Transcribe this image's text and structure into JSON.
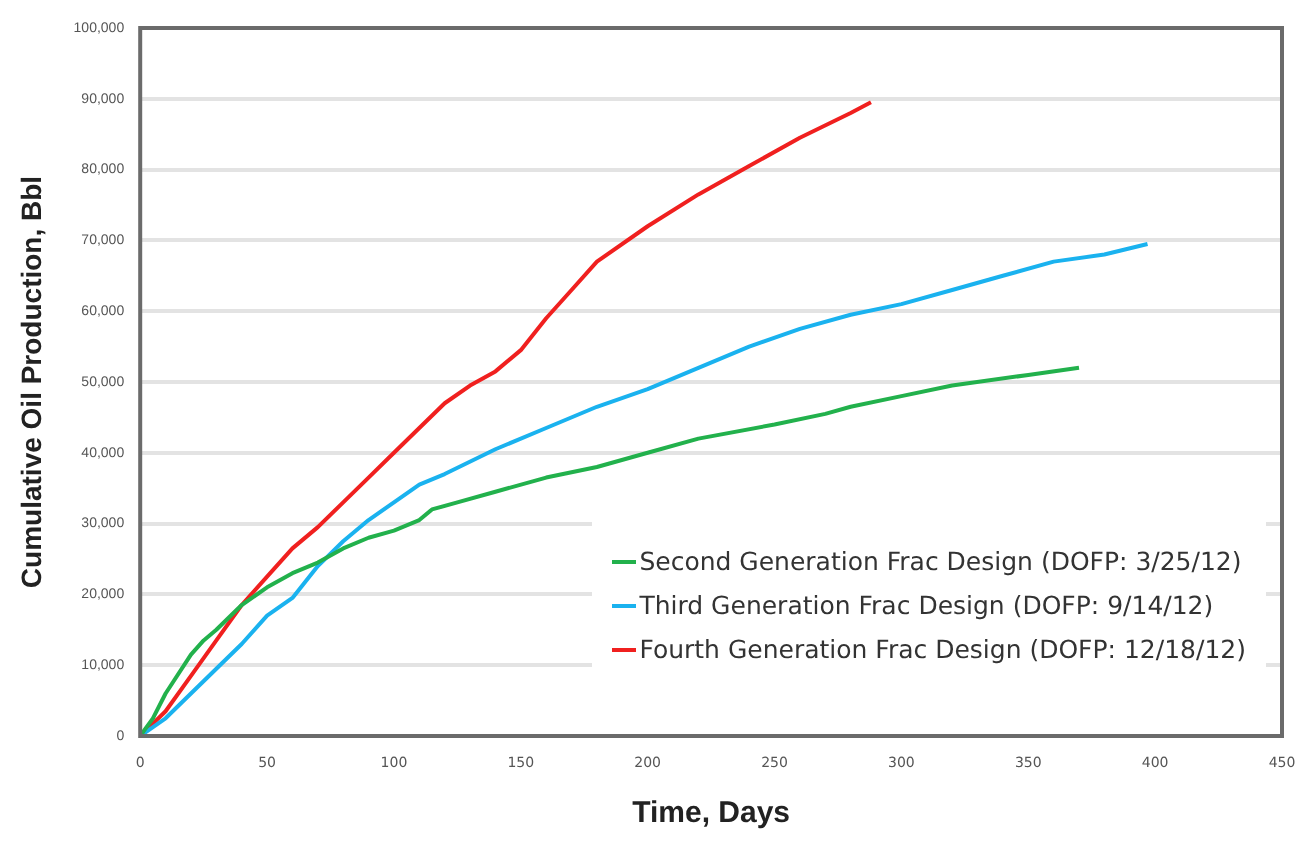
{
  "chart_data": {
    "type": "line",
    "xlabel": "Time, Days",
    "ylabel": "Cumulative Oil Production, Bbl",
    "xlim": [
      0,
      450
    ],
    "xticks": [
      0,
      50,
      100,
      150,
      200,
      250,
      300,
      350,
      400,
      450
    ],
    "ylim": [
      0,
      100000
    ],
    "yticks": [
      {
        "value": 0,
        "label": "0"
      },
      {
        "value": 10000,
        "label": "10,000"
      },
      {
        "value": 20000,
        "label": "20,000"
      },
      {
        "value": 30000,
        "label": "30,000"
      },
      {
        "value": 40000,
        "label": "40,000"
      },
      {
        "value": 50000,
        "label": "50,000"
      },
      {
        "value": 60000,
        "label": "60,000"
      },
      {
        "value": 70000,
        "label": "70,000"
      },
      {
        "value": 80000,
        "label": "80,000"
      },
      {
        "value": 90000,
        "label": "90,000"
      },
      {
        "value": 100000,
        "label": "100,000"
      }
    ],
    "grid": "y",
    "legend": "bottom right",
    "marker": "none",
    "line_style": "solid",
    "series": [
      {
        "name": "Second Generation Frac Design (DOFP: 3/25/12)",
        "color": "#22b14c",
        "x": [
          0,
          5,
          10,
          20,
          25,
          30,
          40,
          50,
          60,
          70,
          80,
          90,
          100,
          110,
          115,
          125,
          140,
          160,
          180,
          200,
          220,
          250,
          270,
          280,
          300,
          320,
          350,
          370
        ],
        "values": [
          0,
          2500,
          6000,
          11500,
          13500,
          15000,
          18500,
          21000,
          23000,
          24500,
          26500,
          28000,
          29000,
          30500,
          32000,
          33000,
          34500,
          36500,
          38000,
          40000,
          42000,
          44000,
          45500,
          46500,
          48000,
          49500,
          51000,
          52000
        ]
      },
      {
        "name": "Third Generation Frac Design (DOFP: 9/14/12)",
        "color": "#1ab2ef",
        "x": [
          0,
          10,
          20,
          30,
          40,
          50,
          60,
          70,
          80,
          90,
          100,
          110,
          120,
          140,
          160,
          180,
          200,
          220,
          240,
          260,
          280,
          300,
          320,
          340,
          360,
          380,
          397
        ],
        "values": [
          0,
          2500,
          6000,
          9500,
          13000,
          17000,
          19500,
          24000,
          27500,
          30500,
          33000,
          35500,
          37000,
          40500,
          43500,
          46500,
          49000,
          52000,
          55000,
          57500,
          59500,
          61000,
          63000,
          65000,
          67000,
          68000,
          69500
        ]
      },
      {
        "name": "Fourth Generation Frac Design (DOFP: 12/18/12)",
        "color": "#f0201f",
        "x": [
          0,
          10,
          20,
          30,
          40,
          50,
          60,
          70,
          80,
          90,
          100,
          110,
          120,
          130,
          140,
          150,
          160,
          170,
          180,
          200,
          220,
          240,
          260,
          280,
          288
        ],
        "values": [
          0,
          3500,
          8500,
          13500,
          18500,
          22500,
          26500,
          29500,
          33000,
          36500,
          40000,
          43500,
          47000,
          49500,
          51500,
          54500,
          59000,
          63000,
          67000,
          72000,
          76500,
          80500,
          84500,
          88000,
          89500
        ]
      }
    ]
  }
}
